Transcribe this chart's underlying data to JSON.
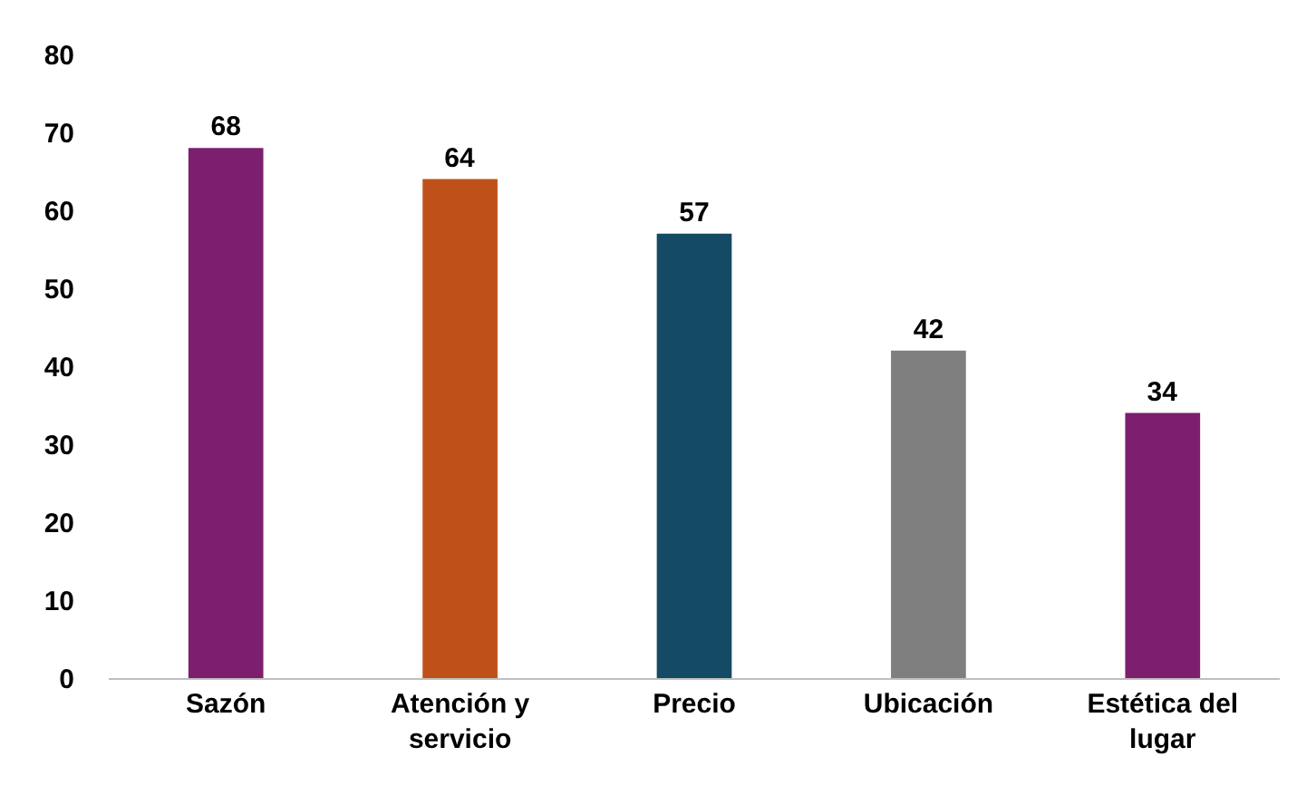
{
  "chart_data": {
    "type": "bar",
    "categories": [
      "Sazón",
      "Atención y servicio",
      "Precio",
      "Ubicación",
      "Estética del lugar"
    ],
    "values": [
      68,
      64,
      57,
      42,
      34
    ],
    "colors": [
      "#7b1f6e",
      "#c0501a",
      "#144a63",
      "#7f7f7f",
      "#7b1f6e"
    ],
    "ylim": [
      0,
      80
    ],
    "yticks": [
      0,
      10,
      20,
      30,
      40,
      50,
      60,
      70,
      80
    ],
    "grid": false,
    "data_labels": true
  }
}
